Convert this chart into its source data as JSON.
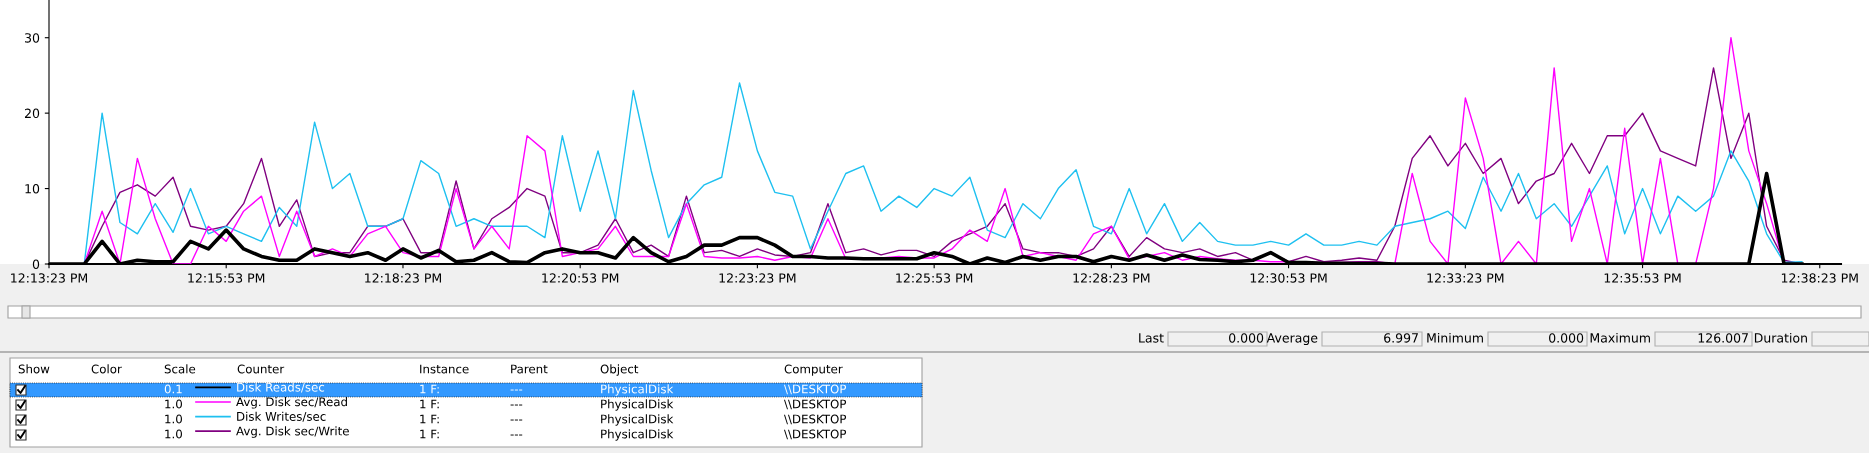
{
  "chart_data": {
    "type": "line",
    "x": [
      12.2231,
      12.2273,
      12.2314,
      12.2356,
      12.2398,
      12.2439,
      12.2481,
      12.2523,
      12.2564,
      12.2606,
      12.2648,
      12.2689,
      12.2731,
      12.2773,
      12.2814,
      12.2856,
      12.2898,
      12.2939,
      12.2981,
      12.3023,
      12.3064,
      12.3106,
      12.3148,
      12.3189,
      12.3231,
      12.3273,
      12.3314,
      12.3356,
      12.3398,
      12.3439,
      12.3481,
      12.3523,
      12.3564,
      12.3606,
      12.3648,
      12.3689,
      12.3731,
      12.3773,
      12.3814,
      12.3856,
      12.3898,
      12.3939,
      12.3981,
      12.4023,
      12.4064,
      12.4106,
      12.4148,
      12.4189,
      12.4231,
      12.4273,
      12.4314,
      12.4356,
      12.4398,
      12.4439,
      12.4481,
      12.4523,
      12.4564,
      12.4606,
      12.4648,
      12.4689,
      12.4731,
      12.4773,
      12.4814,
      12.4856,
      12.4898,
      12.4939,
      12.4981,
      12.5023,
      12.5064,
      12.5106,
      12.5148,
      12.5189,
      12.5231,
      12.5273,
      12.5314,
      12.5356,
      12.5398,
      12.5439,
      12.5481,
      12.5523,
      12.5564,
      12.5606,
      12.5648,
      12.5689,
      12.5731,
      12.5773,
      12.5814,
      12.5856,
      12.5898,
      12.5939,
      12.5981,
      12.6023,
      12.6064,
      12.6106,
      12.6148,
      12.6189,
      12.6231,
      12.6273,
      12.6314,
      12.6356
    ],
    "series": [
      {
        "name": "Disk Reads/sec",
        "color": "#000000",
        "values": [
          0,
          0,
          0,
          3,
          0,
          0.5,
          0.3,
          0.3,
          3,
          2,
          4.5,
          2,
          1,
          0.5,
          0.5,
          2,
          1.5,
          1,
          1.5,
          0.5,
          2,
          0.8,
          1.8,
          0.3,
          0.5,
          1.5,
          0.3,
          0.2,
          1.5,
          2,
          1.5,
          1.5,
          0.8,
          3.5,
          1.5,
          0.3,
          1,
          2.5,
          2.5,
          3.5,
          3.5,
          2.5,
          1,
          1,
          0.8,
          0.8,
          0.7,
          0.7,
          0.7,
          0.7,
          1.5,
          1,
          0,
          0.8,
          0.2,
          1,
          0.5,
          1,
          1,
          0.3,
          1,
          0.5,
          1.2,
          0.5,
          1.2,
          0.6,
          0.5,
          0.3,
          0.5,
          1.5,
          0.2,
          0.2,
          0.1,
          0.1,
          0.1,
          0.1,
          0,
          0,
          0,
          0,
          0,
          0,
          0,
          0,
          0,
          0,
          0,
          0,
          0,
          0,
          0,
          0,
          0,
          0,
          0,
          0,
          0,
          12,
          0,
          0
        ]
      },
      {
        "name": "Avg. Disk sec/Read",
        "color": "#ff00ff",
        "values": [
          null,
          null,
          0,
          7,
          0,
          14,
          6,
          0,
          0,
          5,
          3,
          7,
          9,
          1,
          7,
          1,
          2,
          1,
          4,
          5,
          1.5,
          1,
          1,
          10,
          2,
          5,
          2,
          17,
          15,
          1,
          1.5,
          2,
          5,
          1,
          1,
          1,
          8,
          1,
          0.8,
          0.8,
          1,
          0.5,
          1,
          0.8,
          6,
          0.7,
          0.7,
          0.8,
          1,
          0.8,
          0.8,
          2,
          4.5,
          3,
          10,
          1,
          1.5,
          1,
          0.5,
          4,
          5,
          0.7,
          1,
          1.5,
          0.5,
          1,
          0.7,
          0.5,
          0.5,
          0.3,
          0.3,
          0.2,
          0.2,
          0.2,
          0.3,
          0.3,
          0,
          12,
          3,
          0,
          22,
          14,
          0,
          3,
          0,
          26,
          3,
          10,
          0,
          18,
          0,
          14,
          0,
          0,
          10,
          30,
          15,
          8,
          0,
          0
        ]
      },
      {
        "name": "Disk Writes/sec",
        "color": "#1ec0f0",
        "values": [
          null,
          null,
          0,
          20,
          5.5,
          4,
          8,
          4.2,
          10,
          4,
          5,
          4,
          3,
          7.5,
          5,
          18.8,
          10,
          12,
          5,
          5,
          6,
          13.7,
          12,
          5,
          6,
          5,
          5,
          5,
          3.5,
          17,
          7,
          15,
          6,
          23,
          12.4,
          3.5,
          8,
          10.5,
          11.5,
          24,
          15,
          9.5,
          9,
          2,
          7,
          12,
          13,
          7,
          9,
          7.5,
          10,
          9,
          11.5,
          4.5,
          3.5,
          8,
          6,
          10,
          12.5,
          5,
          4,
          10,
          4,
          8,
          3,
          5.5,
          3,
          2.5,
          2.5,
          3,
          2.5,
          4,
          2.5,
          2.5,
          3,
          2.5,
          5,
          5.5,
          6,
          7,
          4.7,
          11.5,
          7,
          12,
          6,
          8,
          5,
          9,
          13,
          4,
          10,
          4,
          9,
          7,
          9,
          15,
          11,
          4,
          0.2,
          0.3
        ]
      },
      {
        "name": "Avg. Disk sec/Write",
        "color": "#800080",
        "values": [
          null,
          null,
          0,
          5,
          9.5,
          10.5,
          9,
          11.5,
          5,
          4.5,
          5,
          8,
          14,
          5,
          8.5,
          1,
          1.5,
          1.5,
          5,
          5,
          6,
          1.5,
          1.5,
          11,
          2,
          6,
          7.5,
          10,
          9,
          1.5,
          1.5,
          2.5,
          6,
          1.5,
          2.5,
          1,
          9,
          1.5,
          1.8,
          1,
          2,
          1.2,
          1,
          1.5,
          8,
          1.5,
          2,
          1.2,
          1.8,
          1.8,
          1,
          3,
          4,
          5,
          8,
          2,
          1.5,
          1.5,
          1,
          2,
          5,
          1,
          3.5,
          2,
          1.5,
          2,
          1,
          1.5,
          0.5,
          1.5,
          0.3,
          1,
          0.3,
          0.5,
          0.8,
          0.5,
          5,
          14,
          17,
          13,
          16,
          12,
          14,
          8,
          11,
          12,
          16,
          12,
          17,
          17,
          20,
          15,
          14,
          13,
          26,
          14,
          20,
          5,
          0.5,
          0
        ]
      }
    ],
    "xlim": [
      12.2231,
      12.6448
    ],
    "xticks": [
      {
        "value": 12.2231,
        "label": "12:13:23 PM"
      },
      {
        "value": 12.2648,
        "label": "12:15:53 PM"
      },
      {
        "value": 12.3064,
        "label": "12:18:23 PM"
      },
      {
        "value": 12.3481,
        "label": "12:20:53 PM"
      },
      {
        "value": 12.3898,
        "label": "12:23:23 PM"
      },
      {
        "value": 12.4314,
        "label": "12:25:53 PM"
      },
      {
        "value": 12.4731,
        "label": "12:28:23 PM"
      },
      {
        "value": 12.5148,
        "label": "12:30:53 PM"
      },
      {
        "value": 12.5564,
        "label": "12:33:23 PM"
      },
      {
        "value": 12.5981,
        "label": "12:35:53 PM"
      },
      {
        "value": 12.6398,
        "label": "12:38:23 PM"
      }
    ],
    "ylim": [
      0,
      35
    ],
    "yticks": [
      0,
      10,
      20,
      30
    ],
    "grid": false,
    "marker": "none",
    "line_style": "solid",
    "legend": "bottom",
    "annotations": [
      "Show",
      "Color",
      "Scale",
      "Counter",
      "Instance",
      "Parent",
      "Object",
      "Computer",
      "0.1",
      "1 F:",
      "---",
      "PhysicalDisk",
      "\\\\DESKTOP",
      "1.0",
      "1 F:",
      "---",
      "PhysicalDisk",
      "\\\\DESKTOP",
      "1.0",
      "1 F:",
      "---",
      "PhysicalDisk",
      "\\\\DESKTOP",
      "1.0",
      "1 F:",
      "---",
      "PhysicalDisk",
      "\\\\DESKTOP",
      "Last",
      "0.000",
      "Average",
      "6.997",
      "Minimum",
      "0.000",
      "Maximum",
      "126.007",
      "Duration"
    ]
  }
}
